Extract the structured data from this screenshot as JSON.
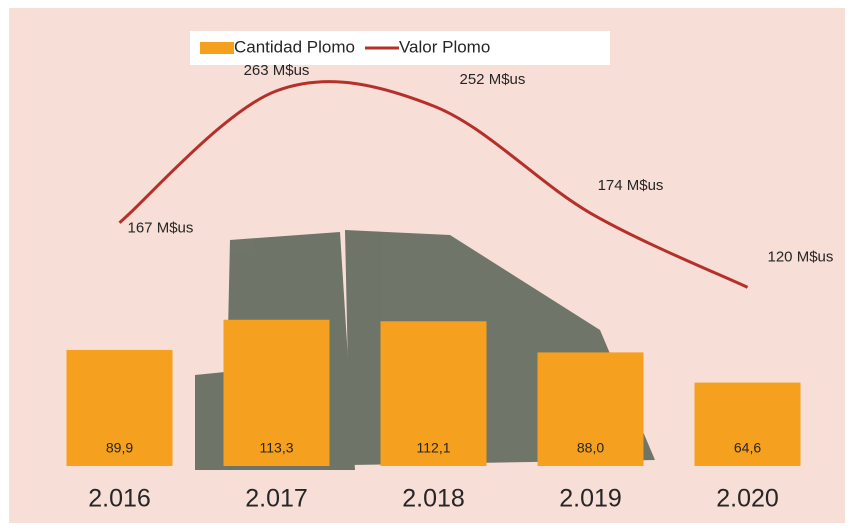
{
  "chart_data": {
    "type": "bar-line",
    "categories": [
      "2.016",
      "2.017",
      "2.018",
      "2.019",
      "2.020"
    ],
    "series": [
      {
        "name": "Cantidad Plomo",
        "type": "bar",
        "color": "#f5a01e",
        "values": [
          89.9,
          113.3,
          112.1,
          88.0,
          64.6
        ],
        "value_labels": [
          "89,9",
          "113,3",
          "112,1",
          "88,0",
          "64,6"
        ]
      },
      {
        "name": "Valor Plomo",
        "type": "line",
        "axis": "y2",
        "color": "#b5302a",
        "values": [
          167,
          263,
          252,
          174,
          120
        ],
        "value_labels": [
          "167 M$us",
          "263 M$us",
          "252 M$us",
          "174 M$us",
          "120 M$us"
        ]
      }
    ],
    "ylim": [
      0,
      330
    ],
    "y2lim": [
      -10,
      300
    ],
    "legend": "top",
    "grid": false
  }
}
